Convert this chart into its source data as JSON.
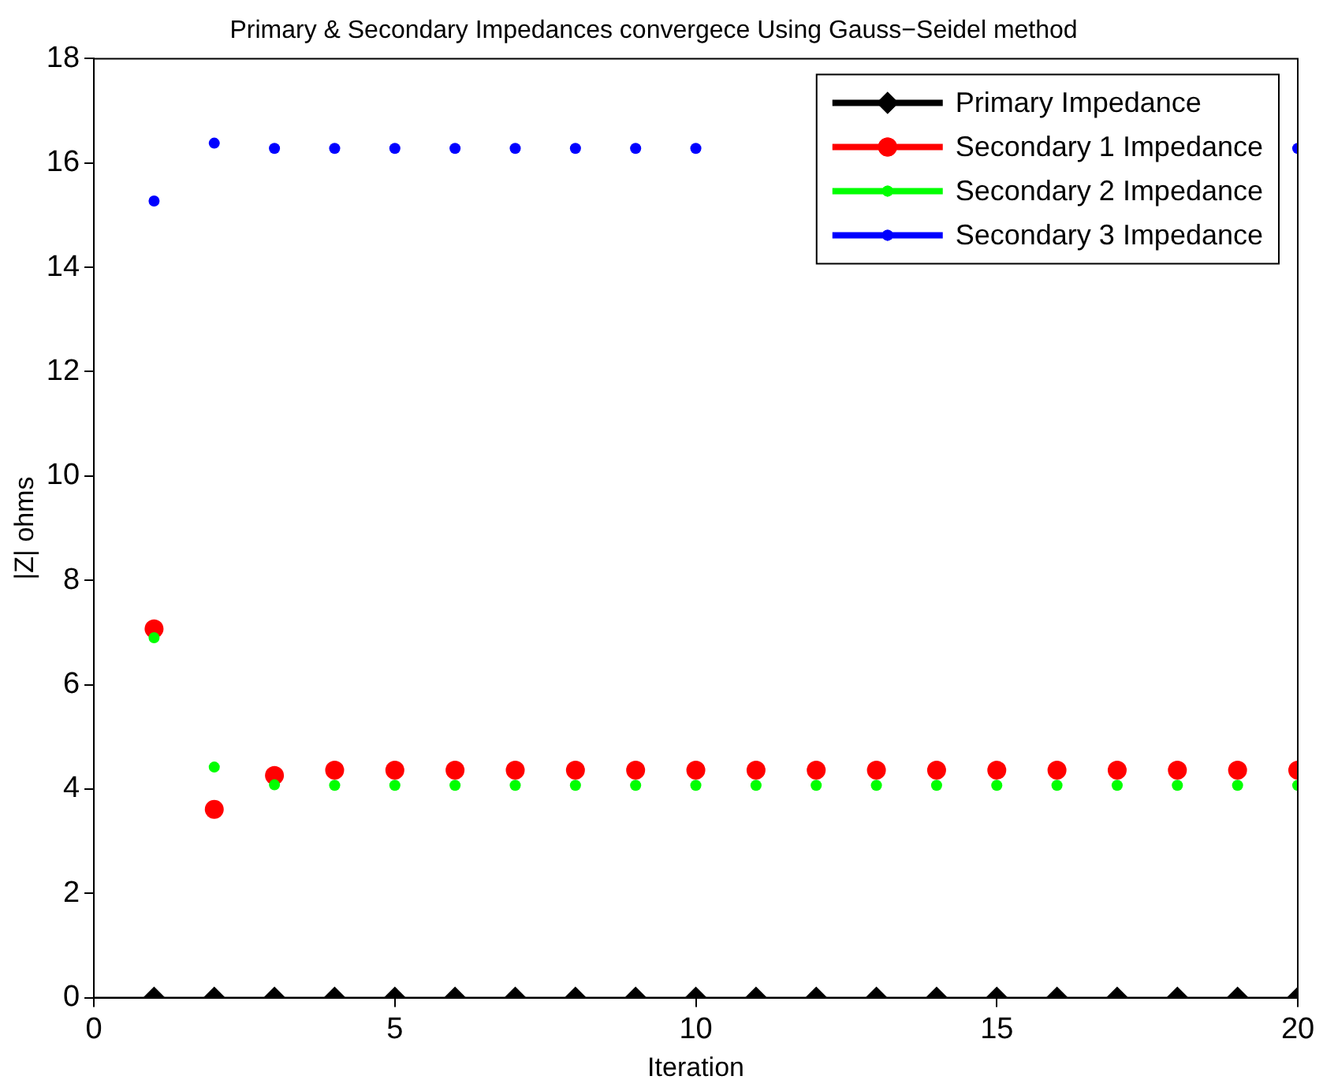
{
  "chart_data": {
    "type": "scatter",
    "title": "Primary & Secondary Impedances convergece Using Gauss−Seidel method",
    "xlabel": "Iteration",
    "ylabel": "|Z| ohms",
    "x": [
      1,
      2,
      3,
      4,
      5,
      6,
      7,
      8,
      9,
      10,
      11,
      12,
      13,
      14,
      15,
      16,
      17,
      18,
      19,
      20
    ],
    "series": [
      {
        "name": "Primary Impedance",
        "color": "#000000",
        "marker": "diamond",
        "values": [
          0,
          0,
          0,
          0,
          0,
          0,
          0,
          0,
          0,
          0,
          0,
          0,
          0,
          0,
          0,
          0,
          0,
          0,
          0,
          0
        ]
      },
      {
        "name": "Secondary 1 Impedance",
        "color": "#ff0000",
        "marker": "circle",
        "values": [
          7.07,
          3.61,
          4.26,
          4.36,
          4.36,
          4.36,
          4.36,
          4.36,
          4.36,
          4.36,
          4.36,
          4.36,
          4.36,
          4.36,
          4.36,
          4.36,
          4.36,
          4.36,
          4.36,
          4.36
        ]
      },
      {
        "name": "Secondary 2 Impedance",
        "color": "#00ff00",
        "marker": "circle",
        "values": [
          6.9,
          4.42,
          4.08,
          4.07,
          4.07,
          4.07,
          4.07,
          4.07,
          4.07,
          4.07,
          4.07,
          4.07,
          4.07,
          4.07,
          4.07,
          4.07,
          4.07,
          4.07,
          4.07,
          4.07
        ]
      },
      {
        "name": "Secondary 3 Impedance",
        "color": "#0000ff",
        "marker": "circle",
        "values": [
          15.27,
          16.38,
          16.28,
          16.28,
          16.28,
          16.28,
          16.28,
          16.28,
          16.28,
          16.28,
          null,
          null,
          null,
          null,
          null,
          null,
          null,
          null,
          null,
          16.28
        ]
      }
    ],
    "xlim": [
      0,
      20
    ],
    "xticks": [
      0,
      5,
      10,
      15,
      20
    ],
    "ylim": [
      0,
      18
    ],
    "yticks": [
      0,
      2,
      4,
      6,
      8,
      10,
      12,
      14,
      16,
      18
    ],
    "grid": false,
    "legend": "top right"
  }
}
